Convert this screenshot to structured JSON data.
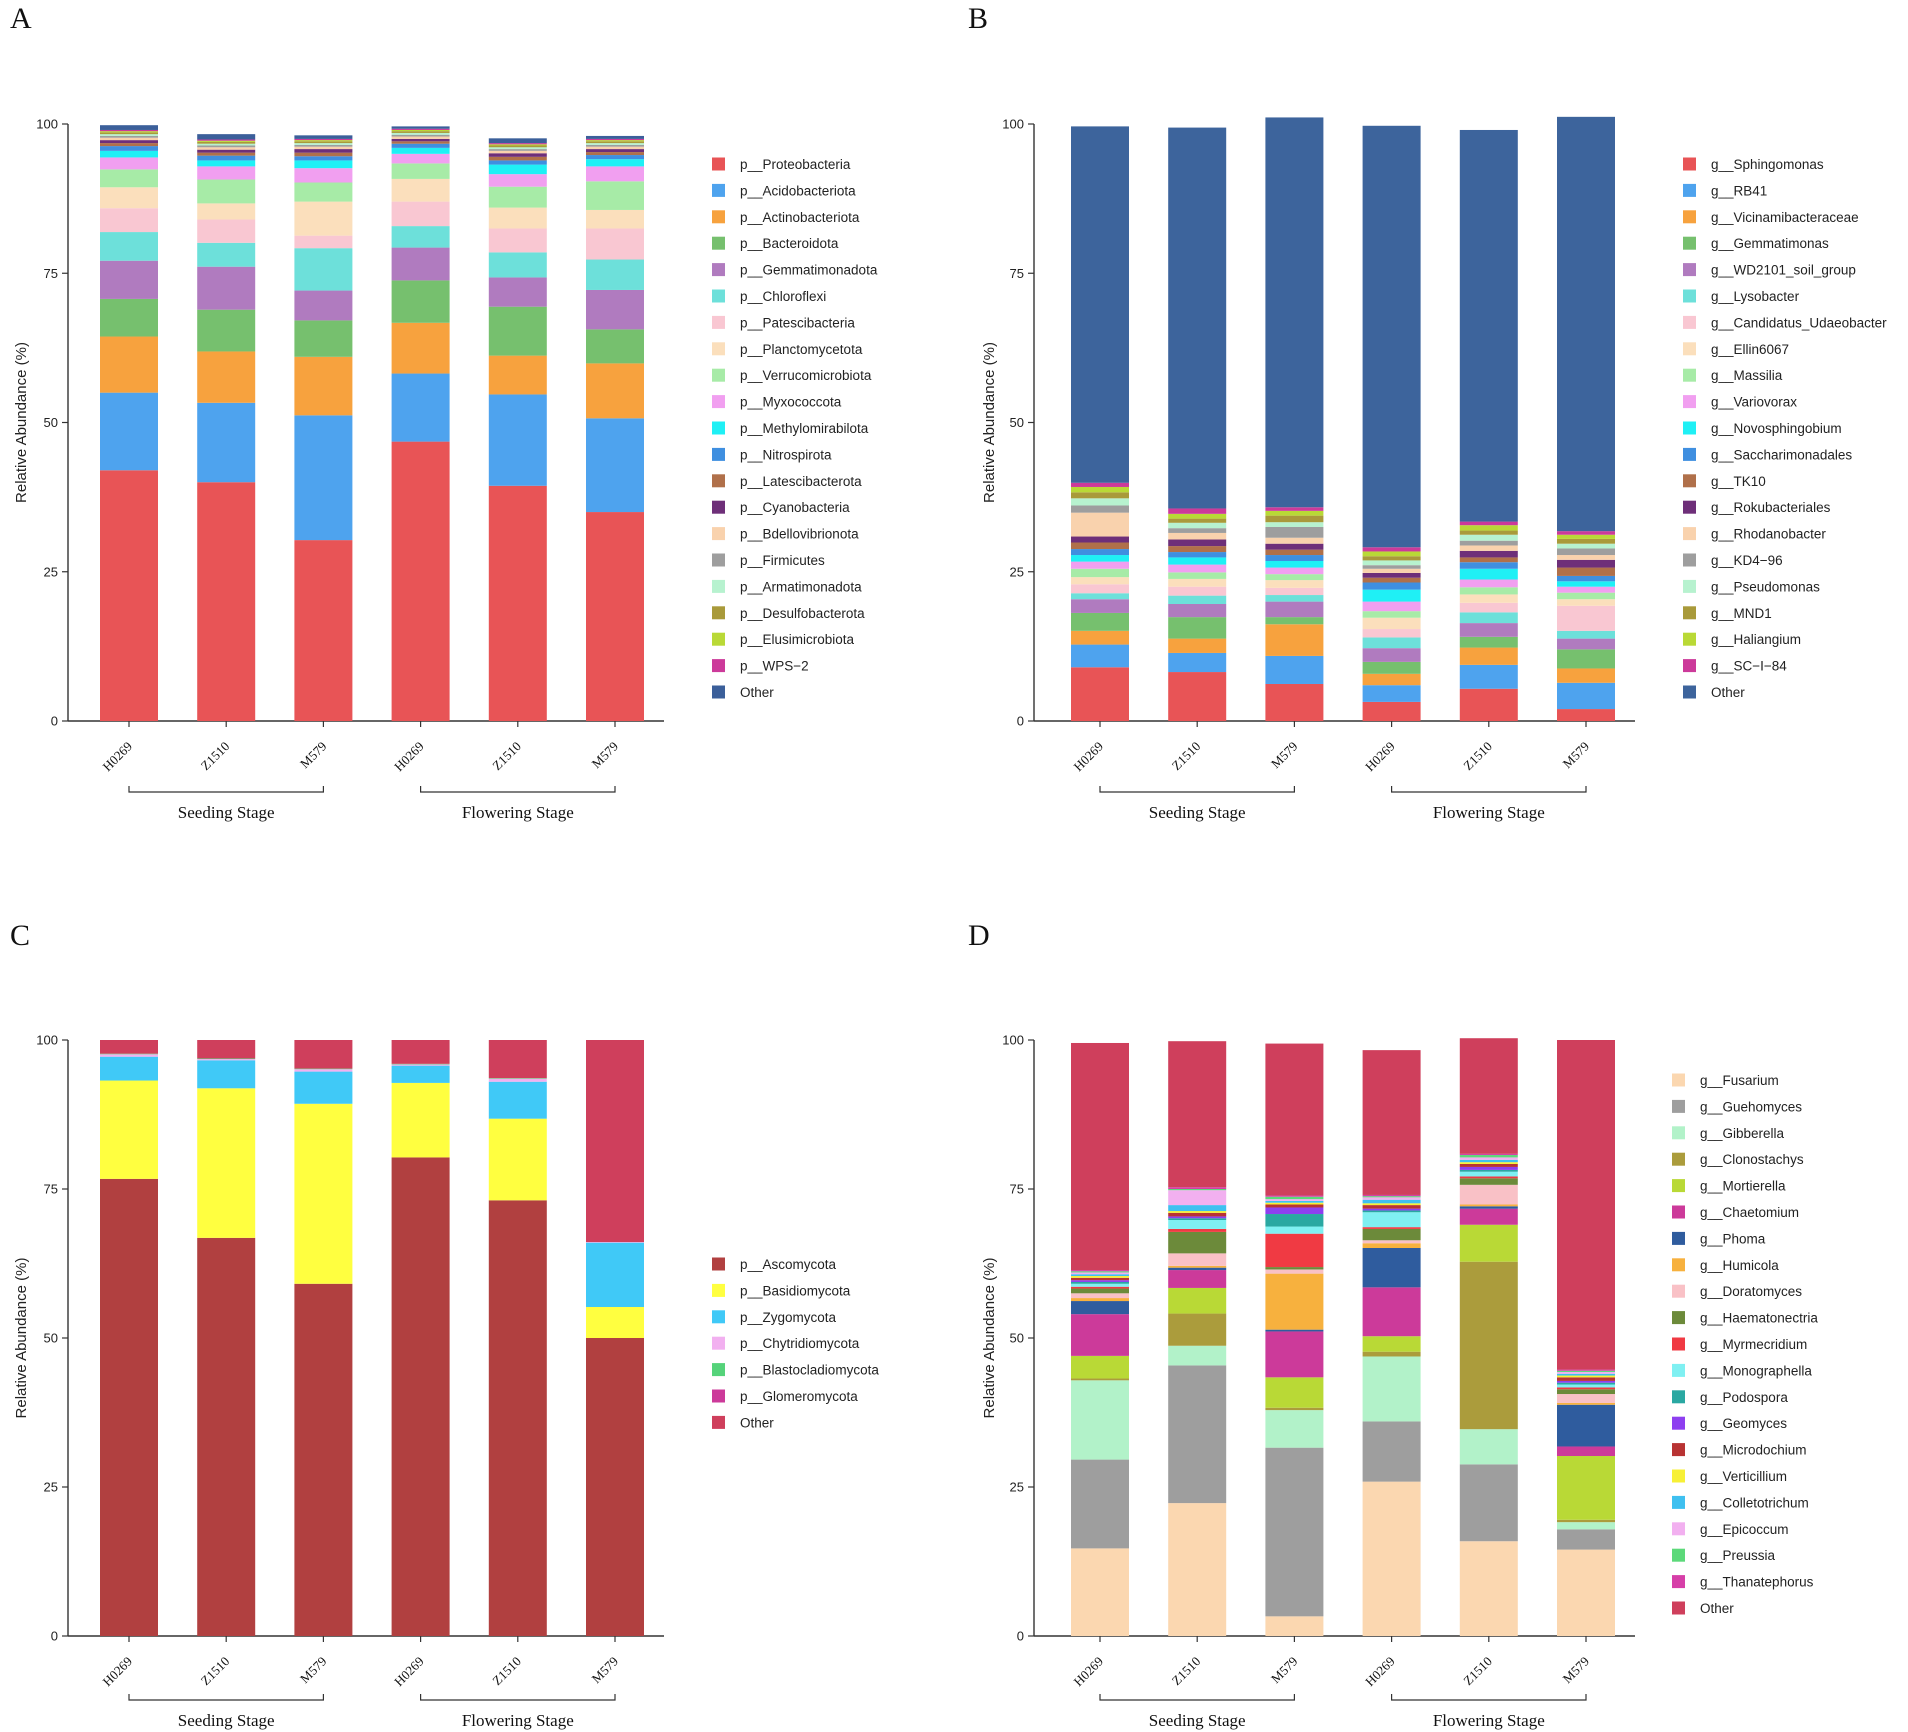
{
  "chart_data": [
    {
      "panel": "A",
      "type": "bar",
      "stacked": true,
      "ylabel": "Relative Abundance (%)",
      "ylim": [
        0,
        100
      ],
      "yticks": [
        0,
        25,
        50,
        75,
        100
      ],
      "categories": [
        "H0269",
        "Z1510",
        "M579",
        "H0269",
        "Z1510",
        "M579"
      ],
      "groups": [
        {
          "label": "Seeding Stage",
          "span": [
            0,
            2
          ]
        },
        {
          "label": "Flowering Stage",
          "span": [
            3,
            5
          ]
        }
      ],
      "series": [
        {
          "name": "p__Proteobacteria",
          "color": "#e85456",
          "values": [
            42,
            40,
            30.3,
            46.8,
            39.4,
            35
          ]
        },
        {
          "name": "p__Acidobacteriota",
          "color": "#4ea3ee",
          "values": [
            13,
            13.3,
            20.9,
            11.4,
            15.3,
            15.7
          ]
        },
        {
          "name": "p__Actinobacteriota",
          "color": "#f7a23e",
          "values": [
            9.4,
            8.6,
            9.8,
            8.5,
            6.5,
            9.2
          ]
        },
        {
          "name": "p__Bacteroidota",
          "color": "#76c06e",
          "values": [
            6.3,
            7,
            6.1,
            7.1,
            8.2,
            5.7
          ]
        },
        {
          "name": "p__Gemmatimonadota",
          "color": "#b07bbf",
          "values": [
            6.4,
            7.2,
            5,
            5.5,
            4.9,
            6.6
          ]
        },
        {
          "name": "p__Chloroflexi",
          "color": "#6de0da",
          "values": [
            4.8,
            4,
            7.1,
            3.6,
            4.2,
            5.1
          ]
        },
        {
          "name": "p__Patescibacteria",
          "color": "#f9c7d2",
          "values": [
            4,
            3.9,
            2.1,
            4.1,
            4,
            5.2
          ]
        },
        {
          "name": "p__Planctomycetota",
          "color": "#fbdfbc",
          "values": [
            3.5,
            2.7,
            5.7,
            3.8,
            3.5,
            3.1
          ]
        },
        {
          "name": "p__Verrucomicrobiota",
          "color": "#a7eba7",
          "values": [
            3,
            4,
            3.2,
            2.6,
            3.5,
            4.8
          ]
        },
        {
          "name": "p__Myxococcota",
          "color": "#f19ff0",
          "values": [
            2,
            2.2,
            2.4,
            1.6,
            2.1,
            2.5
          ]
        },
        {
          "name": "p__Methylomirabilota",
          "color": "#1ff0f5",
          "values": [
            1.1,
            1,
            1.3,
            1,
            1.6,
            1.2
          ]
        },
        {
          "name": "p__Nitrospirota",
          "color": "#3f8fe0",
          "values": [
            0.8,
            0.8,
            0.7,
            0.7,
            0.7,
            0.7
          ]
        },
        {
          "name": "p__Latescibacterota",
          "color": "#b0704a",
          "values": [
            0.5,
            0.5,
            0.6,
            0.4,
            0.6,
            0.5
          ]
        },
        {
          "name": "p__Cyanobacteria",
          "color": "#6e2f79",
          "values": [
            0.5,
            0.5,
            0.6,
            0.4,
            0.6,
            0.5
          ]
        },
        {
          "name": "p__Bdellovibrionota",
          "color": "#f9d2ad",
          "values": [
            0.4,
            0.4,
            0.4,
            0.4,
            0.4,
            0.4
          ]
        },
        {
          "name": "p__Firmicutes",
          "color": "#9e9e9e",
          "values": [
            0.3,
            0.3,
            0.3,
            0.3,
            0.3,
            0.3
          ]
        },
        {
          "name": "p__Armatimonadota",
          "color": "#b7f2cf",
          "values": [
            0.3,
            0.3,
            0.3,
            0.3,
            0.3,
            0.3
          ]
        },
        {
          "name": "p__Desulfobacterota",
          "color": "#a99a3a",
          "values": [
            0.3,
            0.3,
            0.3,
            0.3,
            0.3,
            0.3
          ]
        },
        {
          "name": "p__Elusimicrobiota",
          "color": "#b9d936",
          "values": [
            0.2,
            0.2,
            0.2,
            0.2,
            0.2,
            0.2
          ]
        },
        {
          "name": "p__WPS−2",
          "color": "#cc3a9a",
          "values": [
            0.2,
            0.2,
            0.2,
            0.2,
            0.2,
            0.2
          ]
        },
        {
          "name": "Other",
          "color": "#3b5f9a",
          "values": [
            0.8,
            0.9,
            0.6,
            0.4,
            0.8,
            0.5
          ]
        }
      ]
    },
    {
      "panel": "B",
      "type": "bar",
      "stacked": true,
      "ylabel": "Relative Abundance (%)",
      "ylim": [
        0,
        100
      ],
      "yticks": [
        0,
        25,
        50,
        75,
        100
      ],
      "categories": [
        "H0269",
        "Z1510",
        "M579",
        "H0269",
        "Z1510",
        "M579"
      ],
      "groups": [
        {
          "label": "Seeding Stage",
          "span": [
            0,
            2
          ]
        },
        {
          "label": "Flowering Stage",
          "span": [
            3,
            5
          ]
        }
      ],
      "series": [
        {
          "name": "g__Sphingomonas",
          "color": "#e85456",
          "values": [
            9,
            8.2,
            6.2,
            3.2,
            5.4,
            2
          ]
        },
        {
          "name": "g__RB41",
          "color": "#4ea3ee",
          "values": [
            3.8,
            3.2,
            4.7,
            2.8,
            4,
            4.4
          ]
        },
        {
          "name": "g__Vicinamibacteraceae",
          "color": "#f7a23e",
          "values": [
            2.3,
            2.4,
            5.3,
            1.9,
            2.9,
            2.4
          ]
        },
        {
          "name": "g__Gemmatimonas",
          "color": "#76c06e",
          "values": [
            3,
            3.6,
            1.2,
            2,
            1.8,
            3.2
          ]
        },
        {
          "name": "g__WD2101_soil_group",
          "color": "#b07bbf",
          "values": [
            2.3,
            2.2,
            2.6,
            2.3,
            2.3,
            1.8
          ]
        },
        {
          "name": "g__Lysobacter",
          "color": "#6de0da",
          "values": [
            1,
            1.4,
            1.1,
            1.8,
            1.8,
            1.3
          ]
        },
        {
          "name": "g__Candidatus_Udaeobacter",
          "color": "#f9c7d2",
          "values": [
            1.5,
            1.5,
            1.2,
            1.4,
            1.6,
            4.2
          ]
        },
        {
          "name": "g__Ellin6067",
          "color": "#fbdfbc",
          "values": [
            1.2,
            1.3,
            1.3,
            1.9,
            1.4,
            1.1
          ]
        },
        {
          "name": "g__Massilia",
          "color": "#a7eba7",
          "values": [
            1.4,
            1.1,
            1,
            1.1,
            1.2,
            1.1
          ]
        },
        {
          "name": "g__Variovorax",
          "color": "#f19ff0",
          "values": [
            1.2,
            1.3,
            1.1,
            1.6,
            1.3,
            1
          ]
        },
        {
          "name": "g__Novosphingobium",
          "color": "#1ff0f5",
          "values": [
            1.1,
            1.2,
            1.1,
            2,
            1.8,
            0.9
          ]
        },
        {
          "name": "g__Saccharimonadales",
          "color": "#3f8fe0",
          "values": [
            1,
            0.9,
            1,
            1.2,
            1.1,
            0.9
          ]
        },
        {
          "name": "g__TK10",
          "color": "#b0704a",
          "values": [
            1.1,
            1,
            0.9,
            0.8,
            0.8,
            1.4
          ]
        },
        {
          "name": "g__Rokubacteriales",
          "color": "#6e2f79",
          "values": [
            1,
            1.1,
            1,
            0.8,
            1.1,
            1.3
          ]
        },
        {
          "name": "g__Rhodanobacter",
          "color": "#f9d2ad",
          "values": [
            4,
            1.1,
            1,
            0.7,
            0.9,
            0.8
          ]
        },
        {
          "name": "g__KD4−96",
          "color": "#9e9e9e",
          "values": [
            1.2,
            0.8,
            1.8,
            0.6,
            0.8,
            1.1
          ]
        },
        {
          "name": "g__Pseudomonas",
          "color": "#b7f2cf",
          "values": [
            1.2,
            0.9,
            0.8,
            0.8,
            1,
            0.8
          ]
        },
        {
          "name": "g__MND1",
          "color": "#a99a3a",
          "values": [
            1,
            0.7,
            1.1,
            0.7,
            0.7,
            0.8
          ]
        },
        {
          "name": "g__Haliangium",
          "color": "#b9d936",
          "values": [
            0.9,
            0.8,
            0.8,
            0.8,
            0.9,
            0.7
          ]
        },
        {
          "name": "g__SC−I−84",
          "color": "#cc3a9a",
          "values": [
            0.7,
            0.9,
            0.6,
            0.7,
            0.6,
            0.6
          ]
        },
        {
          "name": "Other",
          "color": "#3d649c",
          "values": [
            59.7,
            63.8,
            65.3,
            70.6,
            65.6,
            69.4
          ]
        }
      ]
    },
    {
      "panel": "C",
      "type": "bar",
      "stacked": true,
      "ylabel": "Relative Abundance (%)",
      "ylim": [
        0,
        100
      ],
      "yticks": [
        0,
        25,
        50,
        75,
        100
      ],
      "categories": [
        "H0269",
        "Z1510",
        "M579",
        "H0269",
        "Z1510",
        "M579"
      ],
      "groups": [
        {
          "label": "Seeding Stage",
          "span": [
            0,
            2
          ]
        },
        {
          "label": "Flowering Stage",
          "span": [
            3,
            5
          ]
        }
      ],
      "series": [
        {
          "name": "p__Ascomycota",
          "color": "#b14040",
          "values": [
            76.7,
            66.8,
            59.1,
            80.3,
            73.1,
            50
          ]
        },
        {
          "name": "p__Basidiomycota",
          "color": "#ffff40",
          "values": [
            16.5,
            25.1,
            30.2,
            12.5,
            13.7,
            5.2
          ]
        },
        {
          "name": "p__Zygomycota",
          "color": "#40c9f7",
          "values": [
            4,
            4.7,
            5.4,
            2.9,
            6.2,
            10.8
          ]
        },
        {
          "name": "p__Chytridiomycota",
          "color": "#f2b0f0",
          "values": [
            0.4,
            0.2,
            0.4,
            0.2,
            0.5,
            0.1
          ]
        },
        {
          "name": "p__Blastocladiomycota",
          "color": "#55d37a",
          "values": [
            0.1,
            0.1,
            0.1,
            0.1,
            0.1,
            0
          ]
        },
        {
          "name": "p__Glomeromycota",
          "color": "#cc3a9a",
          "values": [
            0,
            0,
            0,
            0,
            0,
            0
          ]
        },
        {
          "name": "Other",
          "color": "#cf3f5c",
          "values": [
            2.3,
            3.1,
            4.8,
            4,
            6.4,
            33.9
          ]
        }
      ]
    },
    {
      "panel": "D",
      "type": "bar",
      "stacked": true,
      "ylabel": "Relative Abundance (%)",
      "ylim": [
        0,
        100
      ],
      "yticks": [
        0,
        25,
        50,
        75,
        100
      ],
      "categories": [
        "H0269",
        "Z1510",
        "M579",
        "H0269",
        "Z1510",
        "M579"
      ],
      "groups": [
        {
          "label": "Seeding Stage",
          "span": [
            0,
            2
          ]
        },
        {
          "label": "Flowering Stage",
          "span": [
            3,
            5
          ]
        }
      ],
      "series": [
        {
          "name": "g__Fusarium",
          "color": "#fbd7b0",
          "values": [
            14.7,
            22.3,
            3.3,
            25.9,
            15.9,
            14.5
          ]
        },
        {
          "name": "g__Guehomyces",
          "color": "#9e9e9e",
          "values": [
            14.9,
            23.1,
            28.3,
            10.1,
            12.9,
            3.4
          ]
        },
        {
          "name": "g__Gibberella",
          "color": "#b2f2c9",
          "values": [
            13.3,
            3.3,
            6.3,
            10.9,
            5.9,
            1.2
          ]
        },
        {
          "name": "g__Clonostachys",
          "color": "#ab9c3c",
          "values": [
            0.3,
            5.4,
            0.4,
            0.8,
            28.1,
            0.4
          ]
        },
        {
          "name": "g__Mortierella",
          "color": "#b9d936",
          "values": [
            3.8,
            4.3,
            5.1,
            2.6,
            6.2,
            10.7
          ]
        },
        {
          "name": "g__Chaetomium",
          "color": "#cc3a9a",
          "values": [
            7,
            3,
            7.7,
            8.2,
            2.7,
            1.6
          ]
        },
        {
          "name": "g__Phoma",
          "color": "#2f5c9e",
          "values": [
            2.2,
            0.4,
            0.3,
            6.6,
            0.4,
            7
          ]
        },
        {
          "name": "g__Humicola",
          "color": "#f7b13e",
          "values": [
            0.5,
            0.3,
            9.4,
            0.8,
            0.3,
            0.3
          ]
        },
        {
          "name": "g__Doratomyces",
          "color": "#f9c1c6",
          "values": [
            0.8,
            2.1,
            0.7,
            0.5,
            3.3,
            1.5
          ]
        },
        {
          "name": "g__Haematonectria",
          "color": "#6c8a3a",
          "values": [
            0.8,
            3.6,
            0.4,
            1.9,
            1.1,
            0.8
          ]
        },
        {
          "name": "g__Myrmecridium",
          "color": "#f03a43",
          "values": [
            0.3,
            0.5,
            5.6,
            0.3,
            0.3,
            0.3
          ]
        },
        {
          "name": "g__Monographella",
          "color": "#7ff0f2",
          "values": [
            0.5,
            1.5,
            1.2,
            2.5,
            0.8,
            0.5
          ]
        },
        {
          "name": "g__Podospora",
          "color": "#2aa8a2",
          "values": [
            0.3,
            0.3,
            2.1,
            0.3,
            0.3,
            0.3
          ]
        },
        {
          "name": "g__Geomyces",
          "color": "#8e3ff0",
          "values": [
            0.3,
            0.3,
            1.1,
            0.3,
            0.5,
            0.3
          ]
        },
        {
          "name": "g__Microdochium",
          "color": "#b83333",
          "values": [
            0.4,
            0.6,
            0.5,
            0.6,
            0.5,
            0.6
          ]
        },
        {
          "name": "g__Verticillium",
          "color": "#f7f036",
          "values": [
            0.3,
            0.3,
            0.3,
            0.3,
            0.3,
            0.3
          ]
        },
        {
          "name": "g__Colletotrichum",
          "color": "#3fc0f0",
          "values": [
            0.3,
            1,
            0.3,
            0.6,
            0.4,
            0.3
          ]
        },
        {
          "name": "g__Epicoccum",
          "color": "#f2b0f0",
          "values": [
            0.3,
            2.5,
            0.3,
            0.4,
            0.4,
            0.3
          ]
        },
        {
          "name": "g__Preussia",
          "color": "#5cd97a",
          "values": [
            0.2,
            0.2,
            0.4,
            0.2,
            0.4,
            0.2
          ]
        },
        {
          "name": "g__Thanatephorus",
          "color": "#d63fa8",
          "values": [
            0.2,
            0.3,
            0.2,
            0.2,
            0.2,
            0.2
          ]
        },
        {
          "name": "Other",
          "color": "#cf3f5c",
          "values": [
            38.1,
            24.5,
            25.5,
            24.3,
            19.4,
            55.3
          ]
        }
      ]
    }
  ],
  "panels": [
    {
      "letter": "A"
    },
    {
      "letter": "B"
    },
    {
      "letter": "C"
    },
    {
      "letter": "D"
    }
  ]
}
